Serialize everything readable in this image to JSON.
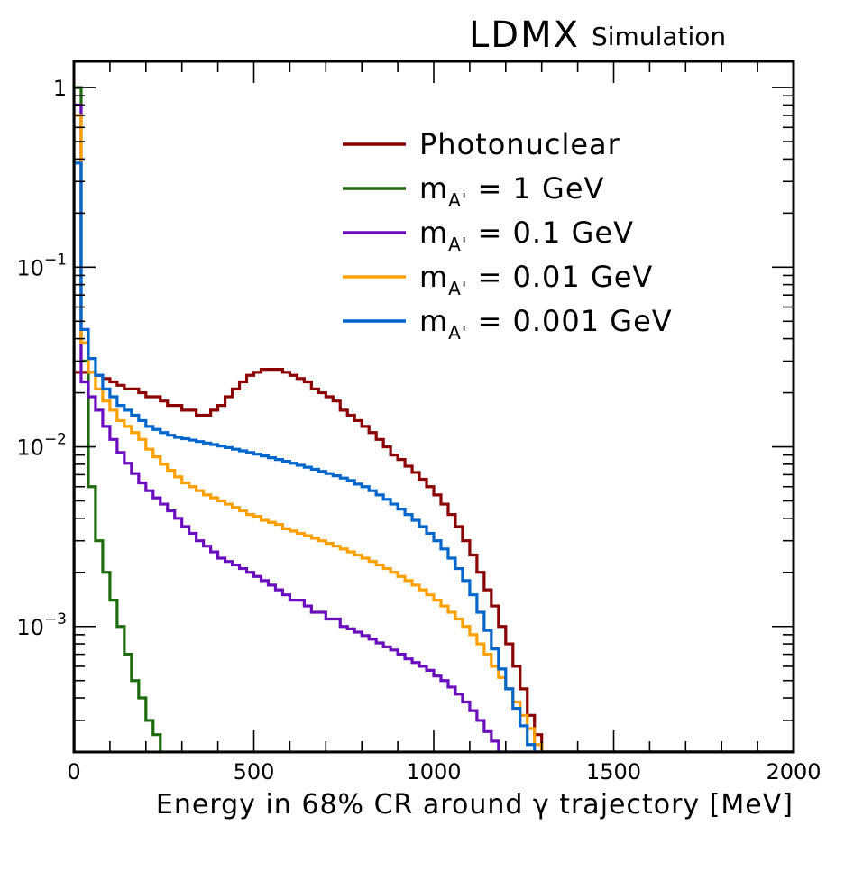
{
  "chart_data": {
    "type": "line",
    "step": true,
    "experiment_label": "LDMX",
    "status_label": "Simulation",
    "xlabel": "Energy in 68% CR around γ trajectory [MeV]",
    "ylabel": "",
    "xlim": [
      0,
      2000
    ],
    "ylim": [
      0.0002,
      1.4
    ],
    "yscale": "log",
    "grid": false,
    "legend_position": "top-right",
    "x_ticks": [
      0,
      500,
      1000,
      1500,
      2000
    ],
    "x_tick_labels": [
      "0",
      "500",
      "1000",
      "1500",
      "2000"
    ],
    "y_ticks": [
      1,
      0.1,
      0.01,
      0.001
    ],
    "y_tick_labels": [
      {
        "base": "1",
        "exp": ""
      },
      {
        "base": "10",
        "exp": "−1"
      },
      {
        "base": "10",
        "exp": "−2"
      },
      {
        "base": "10",
        "exp": "−3"
      }
    ],
    "bin_width": 20,
    "series": [
      {
        "name": "Photonuclear",
        "label_main": "Photonuclear",
        "label_sub": "",
        "label_rest": "",
        "color": "#8b0000",
        "values": [
          0.026,
          0.026,
          0.026,
          0.025,
          0.024,
          0.023,
          0.022,
          0.021,
          0.021,
          0.02,
          0.019,
          0.019,
          0.018,
          0.017,
          0.017,
          0.016,
          0.016,
          0.015,
          0.015,
          0.016,
          0.017,
          0.019,
          0.021,
          0.023,
          0.025,
          0.026,
          0.027,
          0.027,
          0.027,
          0.026,
          0.025,
          0.024,
          0.023,
          0.021,
          0.02,
          0.019,
          0.018,
          0.016,
          0.015,
          0.014,
          0.013,
          0.012,
          0.011,
          0.01,
          0.009,
          0.0085,
          0.0078,
          0.0072,
          0.0066,
          0.006,
          0.0054,
          0.0048,
          0.0042,
          0.0036,
          0.003,
          0.0025,
          0.002,
          0.0016,
          0.0013,
          0.001,
          0.0008,
          0.0006,
          0.00045,
          0.00032,
          0.00025,
          0.0002
        ]
      },
      {
        "name": "m_A' = 1 GeV",
        "label_main": "m",
        "label_sub": "A'",
        "label_rest": " = 1 GeV",
        "color": "#1e6b0e",
        "values": [
          1.0,
          0.03,
          0.006,
          0.003,
          0.002,
          0.0014,
          0.001,
          0.0007,
          0.0005,
          0.0004,
          0.0003,
          0.00025,
          0.0002,
          0.0002,
          0.0002
        ]
      },
      {
        "name": "m_A' = 0.1 GeV",
        "label_main": "m",
        "label_sub": "A'",
        "label_rest": " = 0.1 GeV",
        "color": "#6a0dbf",
        "values": [
          0.8,
          0.023,
          0.019,
          0.016,
          0.013,
          0.011,
          0.0093,
          0.0081,
          0.0071,
          0.0063,
          0.0057,
          0.0052,
          0.0048,
          0.0044,
          0.004,
          0.0036,
          0.0033,
          0.003,
          0.0028,
          0.0026,
          0.0024,
          0.0023,
          0.0022,
          0.0021,
          0.002,
          0.0019,
          0.0018,
          0.0017,
          0.0016,
          0.0015,
          0.0014,
          0.0014,
          0.0013,
          0.0012,
          0.0012,
          0.0011,
          0.0011,
          0.001,
          0.00097,
          0.00093,
          0.00089,
          0.00085,
          0.00081,
          0.00077,
          0.00074,
          0.0007,
          0.00066,
          0.00063,
          0.0006,
          0.00057,
          0.00053,
          0.0005,
          0.00046,
          0.00042,
          0.00038,
          0.00034,
          0.0003,
          0.00026,
          0.00023,
          0.0002
        ]
      },
      {
        "name": "m_A' = 0.01 GeV",
        "label_main": "m",
        "label_sub": "A'",
        "label_rest": " = 0.01 GeV",
        "color": "#ff9f00",
        "values": [
          0.7,
          0.038,
          0.026,
          0.021,
          0.018,
          0.016,
          0.014,
          0.013,
          0.012,
          0.011,
          0.0097,
          0.0088,
          0.008,
          0.0074,
          0.0068,
          0.0063,
          0.006,
          0.0057,
          0.0054,
          0.0052,
          0.005,
          0.0048,
          0.0046,
          0.0044,
          0.0042,
          0.0041,
          0.0039,
          0.0038,
          0.0037,
          0.0035,
          0.0034,
          0.0033,
          0.0032,
          0.0031,
          0.003,
          0.0029,
          0.0028,
          0.0027,
          0.0026,
          0.0025,
          0.0024,
          0.0023,
          0.0022,
          0.0021,
          0.002,
          0.0019,
          0.0018,
          0.0017,
          0.0016,
          0.0015,
          0.0014,
          0.0013,
          0.0012,
          0.0011,
          0.001,
          0.0009,
          0.0008,
          0.0007,
          0.0006,
          0.00052,
          0.00045,
          0.00038,
          0.00032,
          0.00027,
          0.00022,
          0.0002
        ]
      },
      {
        "name": "m_A' = 0.001 GeV",
        "label_main": "m",
        "label_sub": "A'",
        "label_rest": " = 0.001 GeV",
        "color": "#0066cc",
        "values": [
          0.38,
          0.045,
          0.031,
          0.025,
          0.021,
          0.019,
          0.017,
          0.016,
          0.015,
          0.014,
          0.013,
          0.0125,
          0.012,
          0.0116,
          0.0113,
          0.0111,
          0.0109,
          0.0107,
          0.0105,
          0.0103,
          0.0101,
          0.0099,
          0.0097,
          0.0095,
          0.0093,
          0.0091,
          0.0089,
          0.0087,
          0.0085,
          0.0083,
          0.0081,
          0.0079,
          0.0077,
          0.0075,
          0.0073,
          0.0071,
          0.0069,
          0.0067,
          0.0065,
          0.0062,
          0.006,
          0.0057,
          0.0054,
          0.0051,
          0.0048,
          0.0045,
          0.0042,
          0.0039,
          0.0036,
          0.0033,
          0.003,
          0.0027,
          0.0024,
          0.0021,
          0.0018,
          0.0015,
          0.0012,
          0.00095,
          0.00075,
          0.00058,
          0.00045,
          0.00035,
          0.00028,
          0.00022,
          0.0002
        ]
      }
    ]
  }
}
